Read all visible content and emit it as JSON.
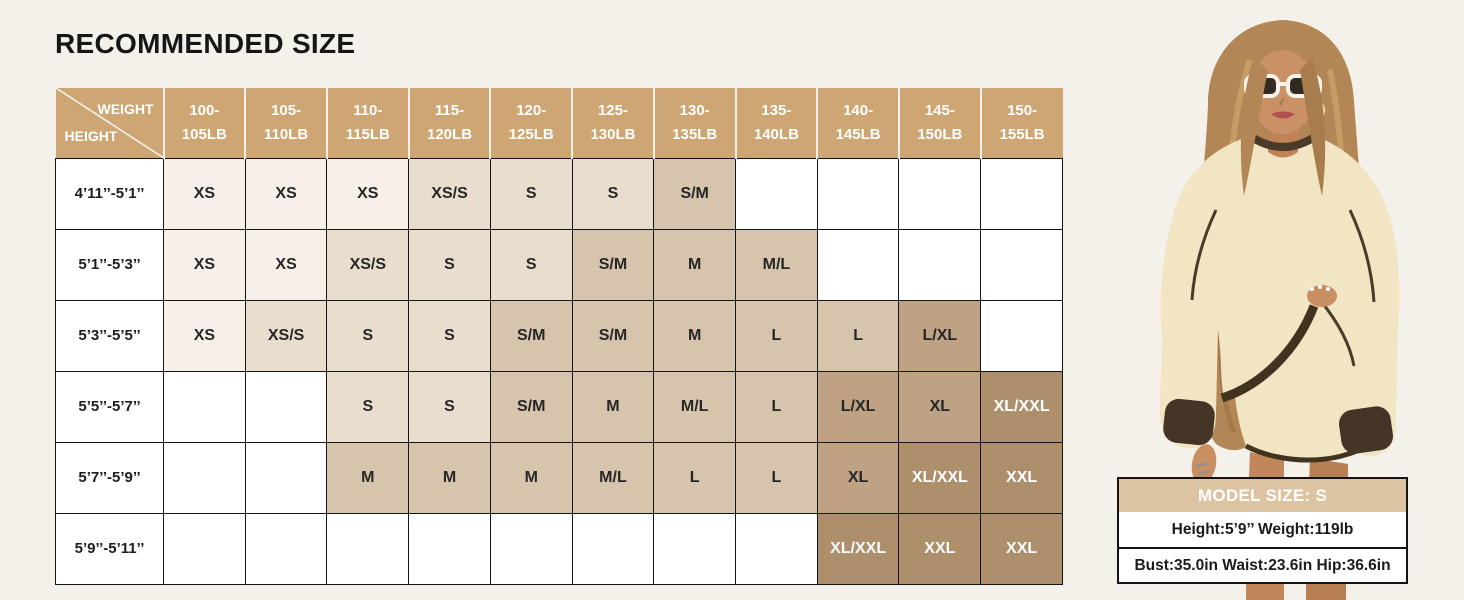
{
  "page": {
    "title": "RECOMMENDED SIZE",
    "background": "#f4f1ea"
  },
  "chart_data": {
    "type": "table",
    "title": "RECOMMENDED SIZE",
    "column_axis_label": "WEIGHT",
    "row_axis_label": "HEIGHT",
    "columns": [
      "100-105LB",
      "105-110LB",
      "110-115LB",
      "115-120LB",
      "120-125LB",
      "125-130LB",
      "130-135LB",
      "135-140LB",
      "140-145LB",
      "145-150LB",
      "150-155LB"
    ],
    "rows": [
      "4’11’’-5’1’’",
      "5’1’’-5’3’’",
      "5’3’’-5’5’’",
      "5’5’’-5’7’’",
      "5’7’’-5’9’’",
      "5’9’’-5’11’’"
    ],
    "matrix": [
      [
        "XS",
        "XS",
        "XS",
        "XS/S",
        "S",
        "S",
        "S/M",
        "",
        "",
        "",
        ""
      ],
      [
        "XS",
        "XS",
        "XS/S",
        "S",
        "S",
        "S/M",
        "M",
        "M/L",
        "",
        "",
        ""
      ],
      [
        "XS",
        "XS/S",
        "S",
        "S",
        "S/M",
        "S/M",
        "M",
        "L",
        "L",
        "L/XL",
        ""
      ],
      [
        "",
        "",
        "S",
        "S",
        "S/M",
        "M",
        "M/L",
        "L",
        "L/XL",
        "XL",
        "XL/XXL"
      ],
      [
        "",
        "",
        "M",
        "M",
        "M",
        "M/L",
        "L",
        "L",
        "XL",
        "XL/XXL",
        "XXL"
      ],
      [
        "",
        "",
        "",
        "",
        "",
        "",
        "",
        "",
        "XL/XXL",
        "XXL",
        "XXL"
      ]
    ]
  },
  "size_table": {
    "corner": {
      "weight_label": "WEIGHT",
      "height_label": "HEIGHT"
    },
    "colors": {
      "header_bg": "#cda673",
      "empty_cell": "#ffffff",
      "tiers": {
        "XS": "#f6f0e9",
        "XS/S": "#e9decd",
        "S": "#e9decd",
        "S/M": "#d7c4ac",
        "M": "#d7c4ac",
        "M/L": "#d7c4ac",
        "L": "#d7c4ac",
        "L/XL": "#bea283",
        "XL": "#bea283",
        "XL/XXL": "#ad8f6c",
        "XXL": "#ad8f6c"
      },
      "white_text_sizes": [
        "XL/XXL",
        "XXL"
      ]
    }
  },
  "model_info": {
    "header": "MODEL SIZE: S",
    "stats_line": "Height:5’9’’ Weight:119lb",
    "measurements_line": "Bust:35.0in Waist:23.6in Hip:36.6in",
    "header_bg": "#dcc3a1"
  },
  "model_photo": {
    "alt": "Model wearing cream crewneck sweatshirt and skirt with dark brown contrast trim"
  }
}
